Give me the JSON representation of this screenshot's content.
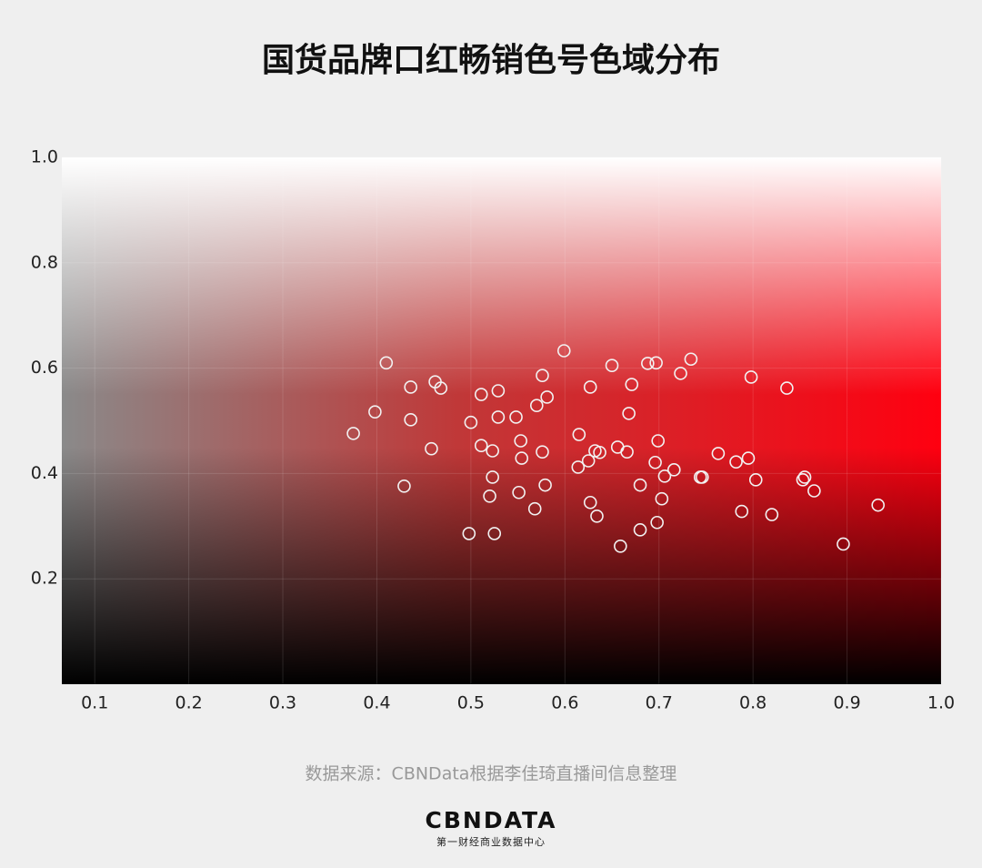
{
  "chart_data": {
    "type": "scatter",
    "title": "国货品牌口红畅销色号色域分布",
    "x": [
      0.375,
      0.41,
      0.398,
      0.436,
      0.436,
      0.462,
      0.468,
      0.458,
      0.429,
      0.5,
      0.511,
      0.529,
      0.511,
      0.529,
      0.523,
      0.523,
      0.52,
      0.498,
      0.525,
      0.548,
      0.553,
      0.554,
      0.551,
      0.568,
      0.57,
      0.576,
      0.581,
      0.576,
      0.579,
      0.599,
      0.615,
      0.614,
      0.627,
      0.625,
      0.632,
      0.637,
      0.627,
      0.634,
      0.65,
      0.656,
      0.666,
      0.668,
      0.671,
      0.659,
      0.68,
      0.68,
      0.688,
      0.697,
      0.699,
      0.696,
      0.706,
      0.716,
      0.703,
      0.698,
      0.723,
      0.734,
      0.744,
      0.746,
      0.763,
      0.782,
      0.795,
      0.798,
      0.803,
      0.788,
      0.82,
      0.836,
      0.855,
      0.853,
      0.865,
      0.896,
      0.933
    ],
    "values": [
      0.476,
      0.61,
      0.517,
      0.564,
      0.502,
      0.574,
      0.562,
      0.447,
      0.376,
      0.497,
      0.55,
      0.557,
      0.453,
      0.507,
      0.443,
      0.393,
      0.357,
      0.286,
      0.286,
      0.507,
      0.462,
      0.429,
      0.364,
      0.333,
      0.529,
      0.586,
      0.545,
      0.441,
      0.378,
      0.633,
      0.474,
      0.412,
      0.564,
      0.424,
      0.443,
      0.44,
      0.345,
      0.319,
      0.605,
      0.45,
      0.441,
      0.514,
      0.569,
      0.262,
      0.378,
      0.293,
      0.609,
      0.61,
      0.462,
      0.421,
      0.395,
      0.407,
      0.352,
      0.307,
      0.59,
      0.617,
      0.393,
      0.393,
      0.438,
      0.422,
      0.429,
      0.583,
      0.388,
      0.328,
      0.322,
      0.562,
      0.393,
      0.388,
      0.367,
      0.266,
      0.34
    ],
    "color": "#f2f2f2",
    "xlim": [
      0.065,
      1.0
    ],
    "xticks": [
      0.1,
      0.2,
      0.3,
      0.4,
      0.5,
      0.6,
      0.7,
      0.8,
      0.9,
      {
        "value": 1,
        "label": "1.0"
      }
    ],
    "ylim": [
      0,
      1
    ],
    "yticks": [
      0.2,
      0.4,
      0.6,
      0.8,
      {
        "value": 1,
        "label": "1.0"
      }
    ],
    "grid": true
  },
  "footer": {
    "source": "数据来源：CBNData根据李佳琦直播间信息整理",
    "logo": "CBNDATA",
    "logo_subtitle": "第一财经商业数据中心"
  }
}
